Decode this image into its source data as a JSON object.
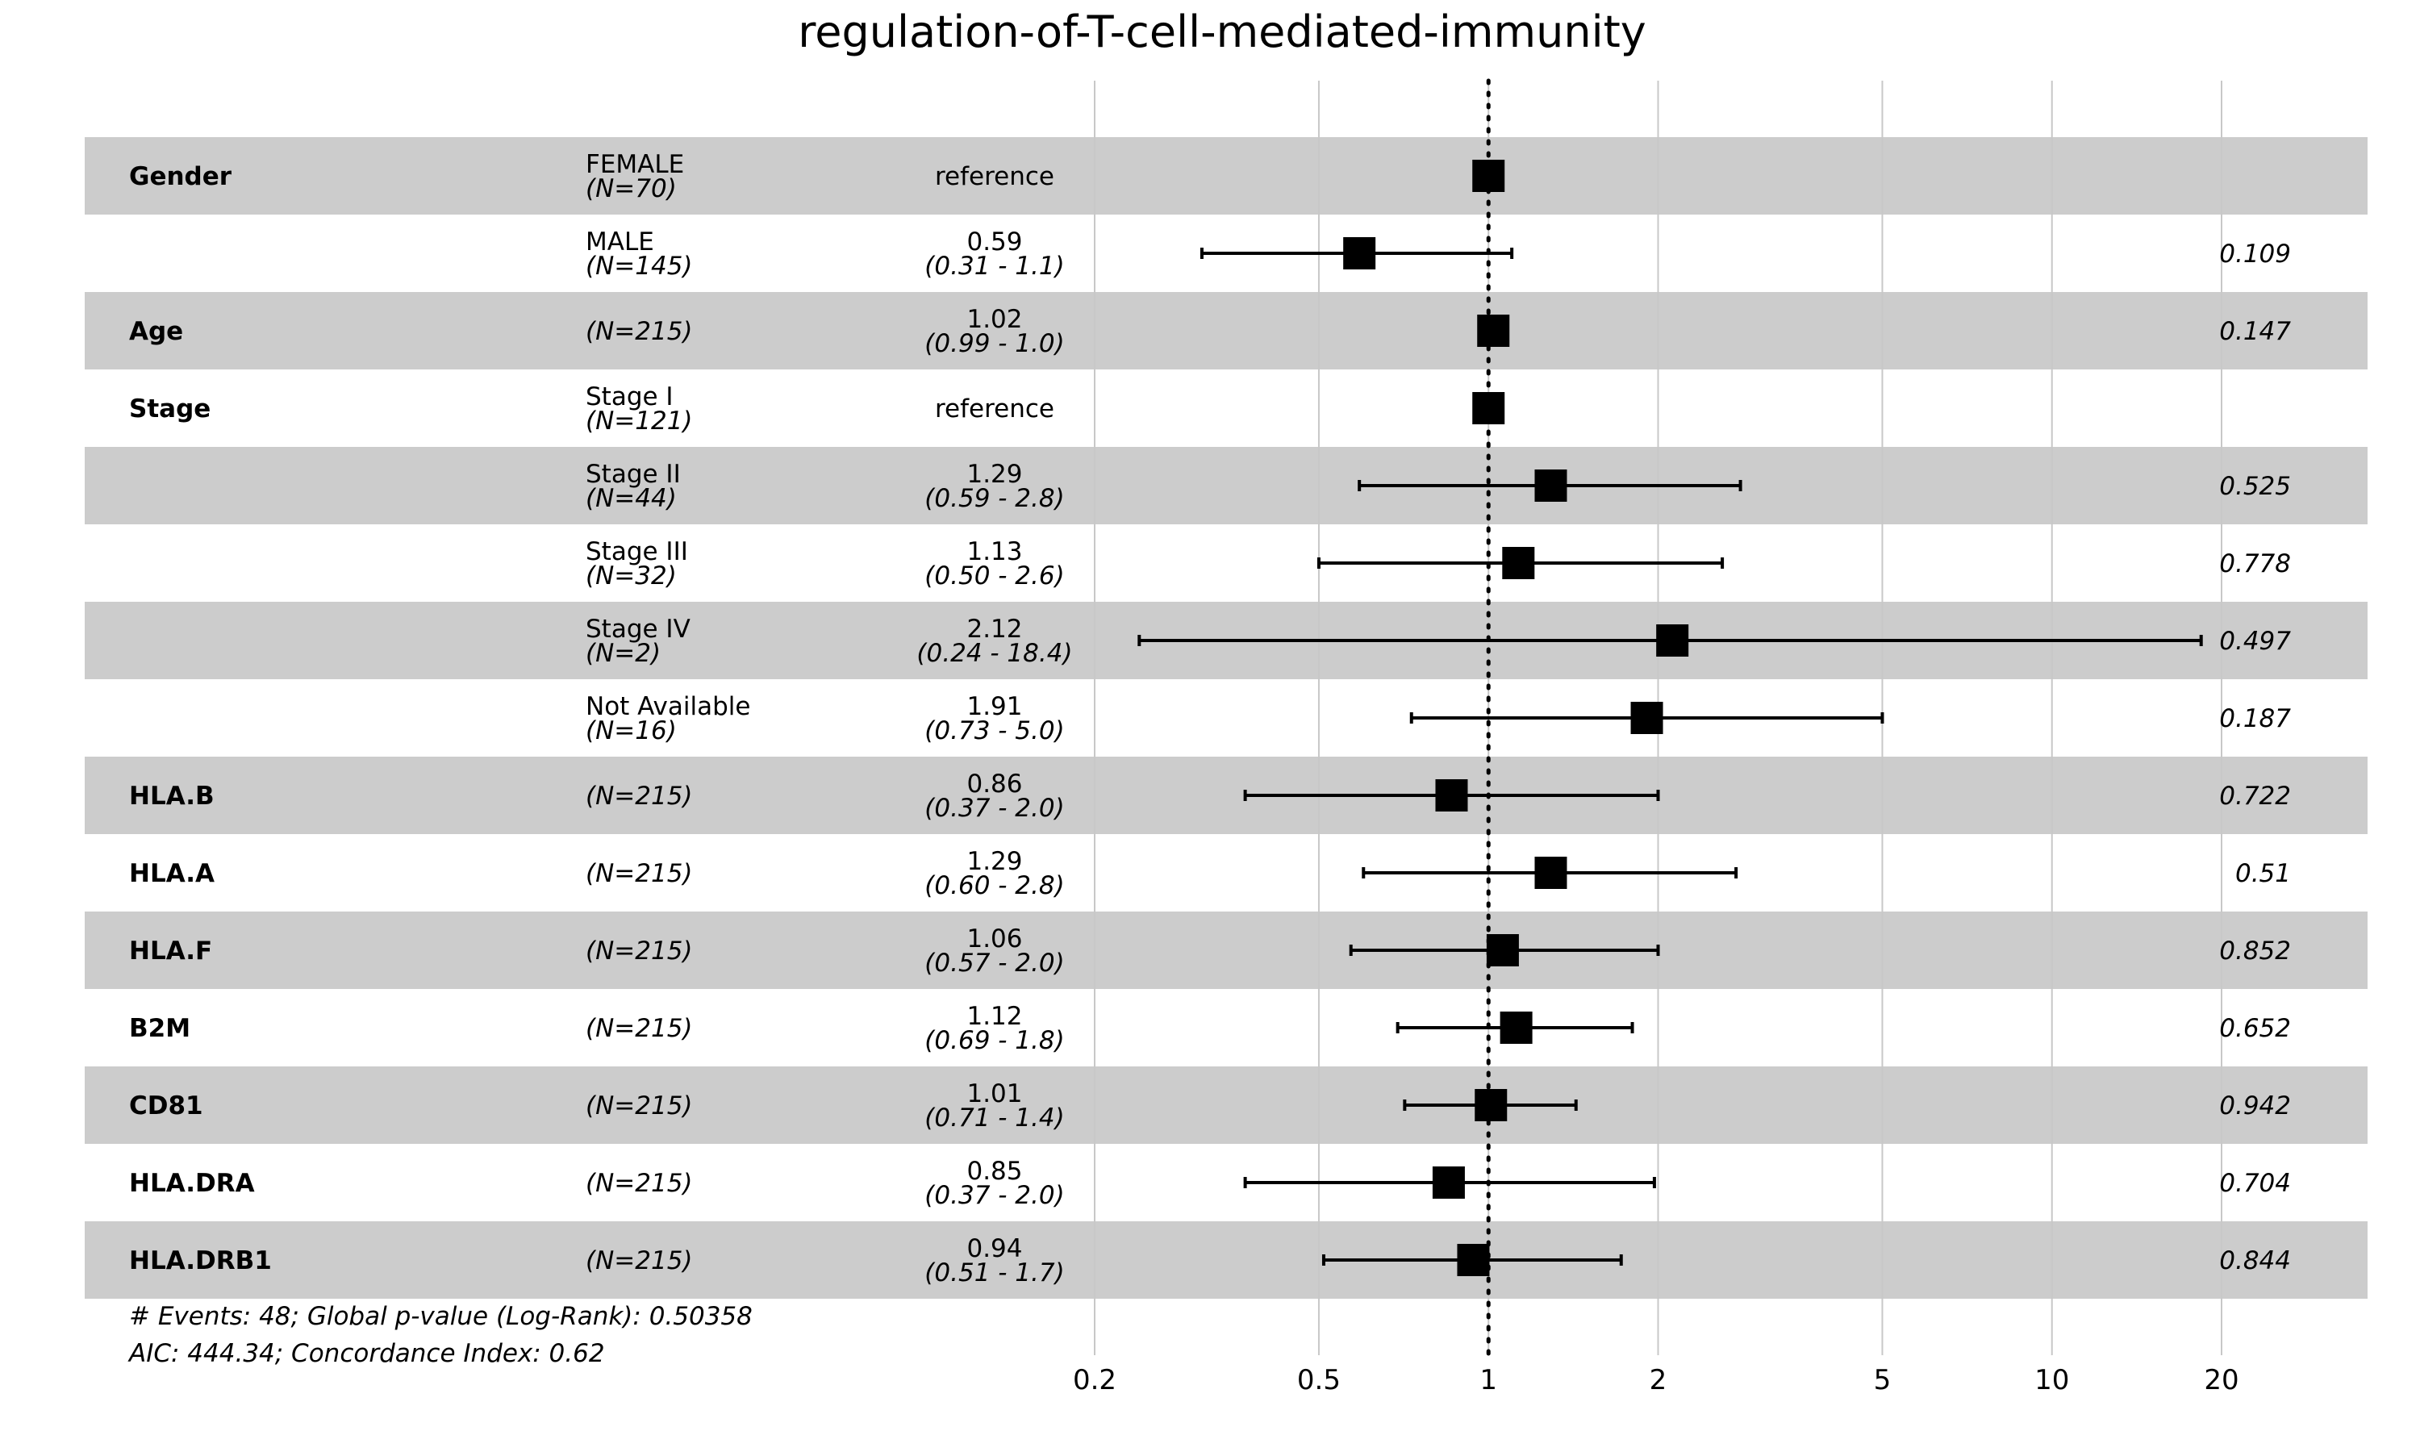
{
  "chart_data": {
    "type": "forest",
    "title": "regulation-of-T-cell-mediated-immunity",
    "x_scale": "log",
    "x_ticks": [
      0.2,
      0.5,
      1,
      2,
      5,
      10,
      20
    ],
    "x_tick_labels": [
      "0.2",
      "0.5",
      "1",
      "2",
      "5",
      "10",
      "20"
    ],
    "xlim": [
      0.2,
      20
    ],
    "reference_line": 1,
    "rows": [
      {
        "variable": "Gender",
        "level": "FEMALE",
        "n": "(N=70)",
        "is_reference": true,
        "estimate_text": "reference",
        "ci_text": "",
        "p_text": "",
        "hr": 1.0,
        "lower": null,
        "upper": null
      },
      {
        "variable": "",
        "level": "MALE",
        "n": "(N=145)",
        "is_reference": false,
        "estimate_text": "0.59",
        "ci_text": "(0.31 -  1.1)",
        "p_text": "0.109",
        "hr": 0.59,
        "lower": 0.31,
        "upper": 1.1
      },
      {
        "variable": "Age",
        "level": "",
        "n": "(N=215)",
        "is_reference": false,
        "estimate_text": "1.02",
        "ci_text": "(0.99 -  1.0)",
        "p_text": "0.147",
        "hr": 1.02,
        "lower": 0.99,
        "upper": 1.04
      },
      {
        "variable": "Stage",
        "level": "Stage I",
        "n": "(N=121)",
        "is_reference": true,
        "estimate_text": "reference",
        "ci_text": "",
        "p_text": "",
        "hr": 1.0,
        "lower": null,
        "upper": null
      },
      {
        "variable": "",
        "level": "Stage II",
        "n": "(N=44)",
        "is_reference": false,
        "estimate_text": "1.29",
        "ci_text": "(0.59 -  2.8)",
        "p_text": "0.525",
        "hr": 1.29,
        "lower": 0.59,
        "upper": 2.8
      },
      {
        "variable": "",
        "level": "Stage III",
        "n": "(N=32)",
        "is_reference": false,
        "estimate_text": "1.13",
        "ci_text": "(0.50 -  2.6)",
        "p_text": "0.778",
        "hr": 1.13,
        "lower": 0.5,
        "upper": 2.6
      },
      {
        "variable": "",
        "level": "Stage IV",
        "n": "(N=2)",
        "is_reference": false,
        "estimate_text": "2.12",
        "ci_text": "(0.24 - 18.4)",
        "p_text": "0.497",
        "hr": 2.12,
        "lower": 0.24,
        "upper": 18.4
      },
      {
        "variable": "",
        "level": "Not Available",
        "n": "(N=16)",
        "is_reference": false,
        "estimate_text": "1.91",
        "ci_text": "(0.73 -  5.0)",
        "p_text": "0.187",
        "hr": 1.91,
        "lower": 0.73,
        "upper": 5.0
      },
      {
        "variable": "HLA.B",
        "level": "",
        "n": "(N=215)",
        "is_reference": false,
        "estimate_text": "0.86",
        "ci_text": "(0.37 -  2.0)",
        "p_text": "0.722",
        "hr": 0.86,
        "lower": 0.37,
        "upper": 2.0
      },
      {
        "variable": "HLA.A",
        "level": "",
        "n": "(N=215)",
        "is_reference": false,
        "estimate_text": "1.29",
        "ci_text": "(0.60 -  2.8)",
        "p_text": "0.51",
        "hr": 1.29,
        "lower": 0.6,
        "upper": 2.75
      },
      {
        "variable": "HLA.F",
        "level": "",
        "n": "(N=215)",
        "is_reference": false,
        "estimate_text": "1.06",
        "ci_text": "(0.57 -  2.0)",
        "p_text": "0.852",
        "hr": 1.06,
        "lower": 0.57,
        "upper": 2.0
      },
      {
        "variable": "B2M",
        "level": "",
        "n": "(N=215)",
        "is_reference": false,
        "estimate_text": "1.12",
        "ci_text": "(0.69 -  1.8)",
        "p_text": "0.652",
        "hr": 1.12,
        "lower": 0.69,
        "upper": 1.8
      },
      {
        "variable": "CD81",
        "level": "",
        "n": "(N=215)",
        "is_reference": false,
        "estimate_text": "1.01",
        "ci_text": "(0.71 -  1.4)",
        "p_text": "0.942",
        "hr": 1.01,
        "lower": 0.71,
        "upper": 1.43
      },
      {
        "variable": "HLA.DRA",
        "level": "",
        "n": "(N=215)",
        "is_reference": false,
        "estimate_text": "0.85",
        "ci_text": "(0.37 -  2.0)",
        "p_text": "0.704",
        "hr": 0.85,
        "lower": 0.37,
        "upper": 1.97
      },
      {
        "variable": "HLA.DRB1",
        "level": "",
        "n": "(N=215)",
        "is_reference": false,
        "estimate_text": "0.94",
        "ci_text": "(0.51 -  1.7)",
        "p_text": "0.844",
        "hr": 0.94,
        "lower": 0.51,
        "upper": 1.72
      }
    ],
    "footnotes": [
      "# Events: 48; Global p-value (Log-Rank): 0.50358",
      "AIC: 444.34; Concordance Index: 0.62"
    ],
    "colors": {
      "shaded_row": "#cccccc",
      "gridline": "#c8c8c8",
      "marker": "#000000",
      "axis_text": "#555555"
    }
  }
}
